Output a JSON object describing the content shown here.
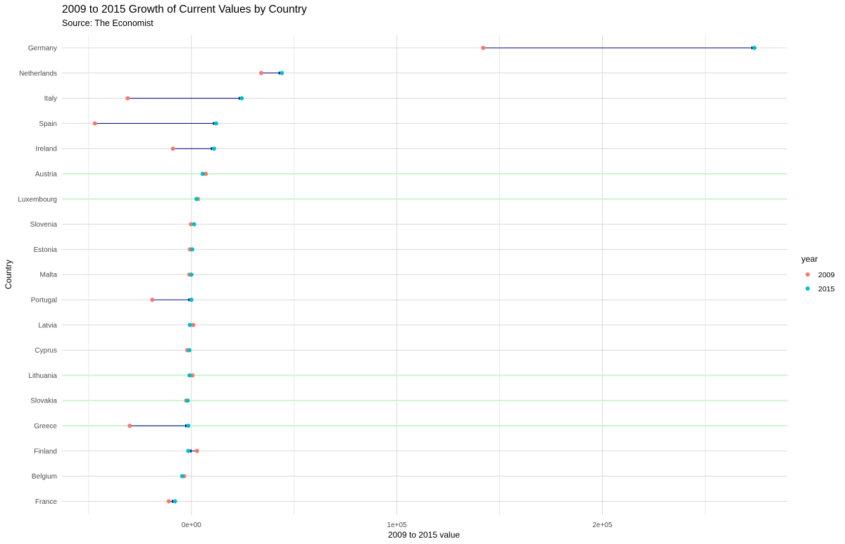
{
  "title": "2009 to 2015 Growth of Current Values by Country",
  "subtitle": "Source: The Economist",
  "colors": {
    "y2009": "#F8766D",
    "y2015": "#00BFC4",
    "segment": "#00008B",
    "grid": "#d9d9d9",
    "highlight": "#ccf5cc"
  },
  "chart_data": {
    "type": "dumbbell",
    "title": "2009 to 2015 Growth of Current Values by Country",
    "subtitle": "Source: The Economist",
    "xlabel": "2009 to 2015 value",
    "ylabel": "Country",
    "xlim": [
      -63000,
      290000
    ],
    "x_ticks": [
      0,
      100000,
      200000
    ],
    "x_tick_labels": [
      "0e+00",
      "1e+05",
      "2e+05"
    ],
    "grid": true,
    "legend": {
      "title": "year",
      "position": "right",
      "entries": [
        "2009",
        "2015"
      ]
    },
    "categories": [
      "Germany",
      "Netherlands",
      "Italy",
      "Spain",
      "Ireland",
      "Austria",
      "Luxembourg",
      "Slovenia",
      "Estonia",
      "Malta",
      "Portugal",
      "Latvia",
      "Cyprus",
      "Lithuania",
      "Slovakia",
      "Greece",
      "Finland",
      "Belgium",
      "France"
    ],
    "series": [
      {
        "name": "2009",
        "values": [
          142000,
          34000,
          -31000,
          -47000,
          -9000,
          7000,
          3000,
          -200,
          -700,
          -1000,
          -19000,
          900,
          -2000,
          500,
          -2500,
          -30000,
          2700,
          -3500,
          -11000
        ]
      },
      {
        "name": "2015",
        "values": [
          274000,
          44000,
          24500,
          12000,
          11000,
          5500,
          2500,
          1300,
          400,
          0,
          0,
          -700,
          -1000,
          -900,
          -1800,
          -1500,
          -1500,
          -4500,
          -8000
        ]
      }
    ],
    "highlighted_rows": [
      "Austria",
      "Luxembourg",
      "Lithuania",
      "Slovakia",
      "Greece"
    ]
  }
}
